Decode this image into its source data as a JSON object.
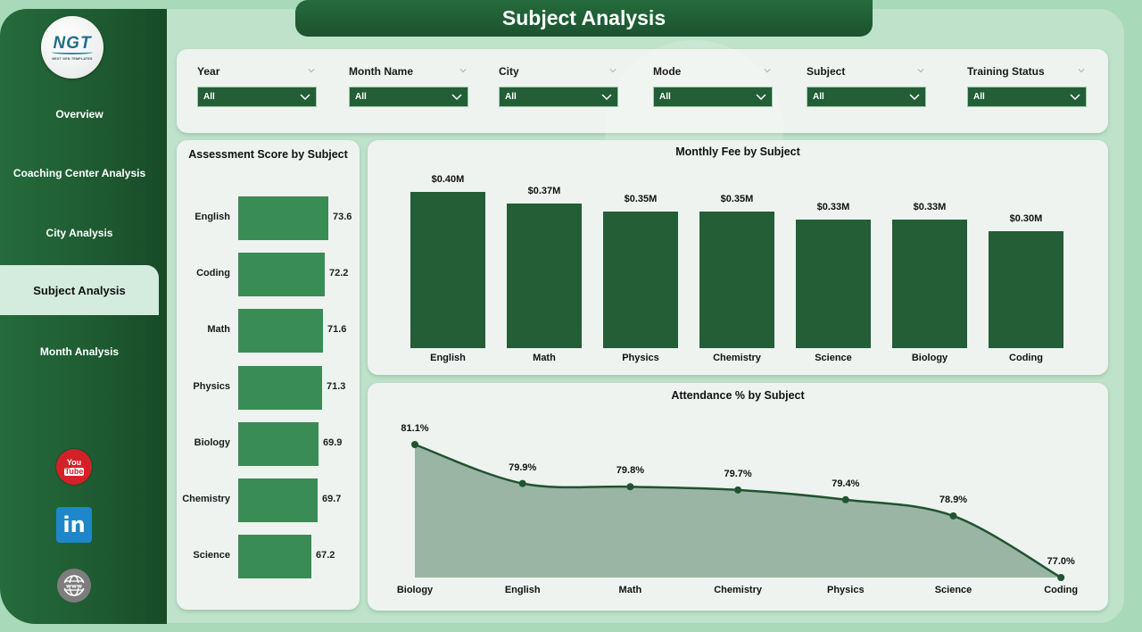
{
  "header": {
    "title": "Subject Analysis"
  },
  "logo": {
    "text": "NGT",
    "subtitle": "NEXT GEN TEMPLATES"
  },
  "sidebar": {
    "items": [
      {
        "label": "Overview",
        "active": false
      },
      {
        "label": "Coaching Center Analysis",
        "active": false
      },
      {
        "label": "City Analysis",
        "active": false
      },
      {
        "label": "Subject Analysis",
        "active": true
      },
      {
        "label": "Month Analysis",
        "active": false
      }
    ],
    "social": [
      {
        "name": "youtube-icon",
        "line1": "You",
        "line2": "Tube"
      },
      {
        "name": "linkedin-icon",
        "text": "in"
      },
      {
        "name": "website-icon",
        "text": "www"
      }
    ]
  },
  "filters": [
    {
      "label": "Year",
      "value": "All"
    },
    {
      "label": "Month Name",
      "value": "All"
    },
    {
      "label": "City",
      "value": "All"
    },
    {
      "label": "Mode",
      "value": "All"
    },
    {
      "label": "Subject",
      "value": "All"
    },
    {
      "label": "Training Status",
      "value": "All"
    }
  ],
  "colors": {
    "primary_dark_green": "#235e36",
    "bar_green": "#3a8c55",
    "area_fill": "#9bb5a4",
    "background": "#a8d9b8",
    "card": "#eef3f0",
    "active_nav": "#d3ecdd"
  },
  "chart_data": [
    {
      "type": "bar",
      "orientation": "horizontal",
      "title": "Assessment Score by Subject",
      "categories": [
        "English",
        "Coding",
        "Math",
        "Physics",
        "Biology",
        "Chemistry",
        "Science"
      ],
      "values": [
        73.6,
        72.2,
        71.6,
        71.3,
        69.9,
        69.7,
        67.2
      ],
      "labels": [
        "73.6",
        "72.2",
        "71.6",
        "71.3",
        "69.9",
        "69.7",
        "67.2"
      ],
      "xlabel": "",
      "ylabel": "",
      "grid": false
    },
    {
      "type": "bar",
      "title": "Monthly Fee by Subject",
      "categories": [
        "English",
        "Math",
        "Physics",
        "Chemistry",
        "Science",
        "Biology",
        "Coding"
      ],
      "values": [
        0.4,
        0.37,
        0.35,
        0.35,
        0.33,
        0.33,
        0.3
      ],
      "labels": [
        "$0.40M",
        "$0.37M",
        "$0.35M",
        "$0.35M",
        "$0.33M",
        "$0.33M",
        "$0.30M"
      ],
      "unit": "$M",
      "xlabel": "",
      "ylabel": "",
      "grid": false
    },
    {
      "type": "area",
      "title": "Attendance % by Subject",
      "categories": [
        "Biology",
        "English",
        "Math",
        "Chemistry",
        "Physics",
        "Science",
        "Coding"
      ],
      "values": [
        81.1,
        79.9,
        79.8,
        79.7,
        79.4,
        78.9,
        77.0
      ],
      "labels": [
        "81.1%",
        "79.9%",
        "79.8%",
        "79.7%",
        "79.4%",
        "78.9%",
        "77.0%"
      ],
      "unit": "%",
      "xlabel": "",
      "ylabel": "",
      "grid": false
    }
  ]
}
